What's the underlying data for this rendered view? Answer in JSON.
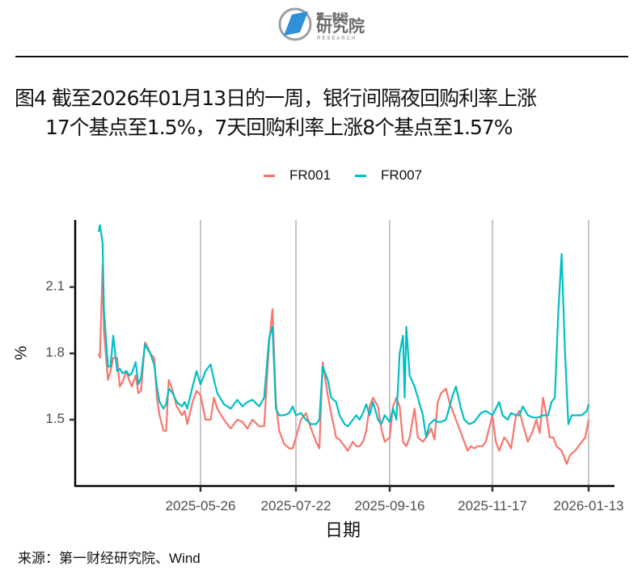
{
  "logo": {
    "small_text": "第一财经",
    "big_text": "研究院",
    "en_text": "RESEARCH",
    "icon": "diamond-circle-logo-icon",
    "colors": {
      "blue": "#2f8fd8",
      "gray": "#9aa0a6"
    }
  },
  "title": {
    "line1": "图4  截至2026年01月13日的一周，银行间隔夜回购利率上涨",
    "line2": "17个基点至1.5%，7天回购利率上涨8个基点至1.57%"
  },
  "legend": [
    {
      "label": "FR001",
      "color": "#f8766d"
    },
    {
      "label": "FR007",
      "color": "#00bfc4"
    }
  ],
  "axes": {
    "ylabel": "%",
    "xlabel": "日期",
    "yticks": [
      "2.1",
      "1.8",
      "1.5"
    ],
    "xticks": [
      "2025-05-26",
      "2025-07-22",
      "2025-09-16",
      "2025-11-17",
      "2026-01-13"
    ]
  },
  "source": "来源：第一财经研究院、Wind",
  "chart_data": {
    "type": "line",
    "title": "截至2026年01月13日的一周，银行间隔夜回购利率上涨17个基点至1.5%，7天回购利率上涨8个基点至1.57%",
    "xlabel": "日期",
    "ylabel": "%",
    "ylim": [
      1.21,
      2.4
    ],
    "x_tick_labels": [
      "2025-05-26",
      "2025-07-22",
      "2025-09-16",
      "2025-11-17",
      "2026-01-13"
    ],
    "y_tick_values": [
      1.5,
      1.8,
      2.1
    ],
    "grid": "vertical major lines at x ticks",
    "legend_position": "top",
    "x_range_approx": [
      "2025-03-10",
      "2026-01-13"
    ],
    "series": [
      {
        "name": "FR001",
        "color": "#f8766d",
        "points": [
          [
            "2025-03-10",
            1.8
          ],
          [
            "2025-03-11",
            1.78
          ],
          [
            "2025-03-13",
            2.2
          ],
          [
            "2025-03-14",
            1.9
          ],
          [
            "2025-03-17",
            1.68
          ],
          [
            "2025-03-19",
            1.72
          ],
          [
            "2025-03-21",
            1.78
          ],
          [
            "2025-03-24",
            1.78
          ],
          [
            "2025-03-26",
            1.65
          ],
          [
            "2025-03-28",
            1.67
          ],
          [
            "2025-03-31",
            1.72
          ],
          [
            "2025-04-02",
            1.68
          ],
          [
            "2025-04-04",
            1.65
          ],
          [
            "2025-04-07",
            1.7
          ],
          [
            "2025-04-09",
            1.62
          ],
          [
            "2025-04-11",
            1.63
          ],
          [
            "2025-04-14",
            1.85
          ],
          [
            "2025-04-16",
            1.83
          ],
          [
            "2025-04-18",
            1.8
          ],
          [
            "2025-04-21",
            1.78
          ],
          [
            "2025-04-23",
            1.6
          ],
          [
            "2025-04-25",
            1.52
          ],
          [
            "2025-04-28",
            1.45
          ],
          [
            "2025-04-30",
            1.45
          ],
          [
            "2025-05-02",
            1.68
          ],
          [
            "2025-05-05",
            1.63
          ],
          [
            "2025-05-08",
            1.56
          ],
          [
            "2025-05-12",
            1.52
          ],
          [
            "2025-05-14",
            1.54
          ],
          [
            "2025-05-16",
            1.48
          ],
          [
            "2025-05-20",
            1.58
          ],
          [
            "2025-05-23",
            1.63
          ],
          [
            "2025-05-26",
            1.61
          ],
          [
            "2025-05-29",
            1.5
          ],
          [
            "2025-06-01",
            1.5
          ],
          [
            "2025-06-03",
            1.6
          ],
          [
            "2025-06-05",
            1.55
          ],
          [
            "2025-06-09",
            1.5
          ],
          [
            "2025-06-13",
            1.46
          ],
          [
            "2025-06-17",
            1.5
          ],
          [
            "2025-06-20",
            1.49
          ],
          [
            "2025-06-23",
            1.46
          ],
          [
            "2025-06-26",
            1.5
          ],
          [
            "2025-06-30",
            1.47
          ],
          [
            "2025-07-03",
            1.47
          ],
          [
            "2025-07-06",
            1.85
          ],
          [
            "2025-07-08",
            2.0
          ],
          [
            "2025-07-10",
            1.58
          ],
          [
            "2025-07-12",
            1.45
          ],
          [
            "2025-07-15",
            1.39
          ],
          [
            "2025-07-18",
            1.37
          ],
          [
            "2025-07-20",
            1.37
          ],
          [
            "2025-07-22",
            1.42
          ],
          [
            "2025-07-25",
            1.5
          ],
          [
            "2025-07-28",
            1.53
          ],
          [
            "2025-07-31",
            1.46
          ],
          [
            "2025-08-03",
            1.4
          ],
          [
            "2025-08-05",
            1.37
          ],
          [
            "2025-08-07",
            1.76
          ],
          [
            "2025-08-10",
            1.61
          ],
          [
            "2025-08-12",
            1.53
          ],
          [
            "2025-08-15",
            1.42
          ],
          [
            "2025-08-17",
            1.41
          ],
          [
            "2025-08-20",
            1.38
          ],
          [
            "2025-08-22",
            1.36
          ],
          [
            "2025-08-25",
            1.4
          ],
          [
            "2025-08-27",
            1.38
          ],
          [
            "2025-08-29",
            1.38
          ],
          [
            "2025-08-31",
            1.4
          ],
          [
            "2025-09-02",
            1.45
          ],
          [
            "2025-09-04",
            1.56
          ],
          [
            "2025-09-06",
            1.6
          ],
          [
            "2025-09-09",
            1.56
          ],
          [
            "2025-09-11",
            1.46
          ],
          [
            "2025-09-13",
            1.4
          ],
          [
            "2025-09-16",
            1.42
          ],
          [
            "2025-09-18",
            1.56
          ],
          [
            "2025-09-20",
            1.6
          ],
          [
            "2025-09-22",
            1.56
          ],
          [
            "2025-09-24",
            1.4
          ],
          [
            "2025-09-26",
            1.38
          ],
          [
            "2025-09-28",
            1.42
          ],
          [
            "2025-10-01",
            1.55
          ],
          [
            "2025-10-03",
            1.42
          ],
          [
            "2025-10-06",
            1.4
          ],
          [
            "2025-10-09",
            1.43
          ],
          [
            "2025-10-11",
            1.46
          ],
          [
            "2025-10-13",
            1.41
          ],
          [
            "2025-10-15",
            1.58
          ],
          [
            "2025-10-17",
            1.62
          ],
          [
            "2025-10-20",
            1.64
          ],
          [
            "2025-10-22",
            1.58
          ],
          [
            "2025-10-26",
            1.5
          ],
          [
            "2025-10-29",
            1.44
          ],
          [
            "2025-10-31",
            1.4
          ],
          [
            "2025-11-02",
            1.36
          ],
          [
            "2025-11-04",
            1.38
          ],
          [
            "2025-11-06",
            1.37
          ],
          [
            "2025-11-08",
            1.38
          ],
          [
            "2025-11-11",
            1.38
          ],
          [
            "2025-11-13",
            1.4
          ],
          [
            "2025-11-17",
            1.52
          ],
          [
            "2025-11-19",
            1.4
          ],
          [
            "2025-11-21",
            1.36
          ],
          [
            "2025-11-24",
            1.42
          ],
          [
            "2025-11-26",
            1.4
          ],
          [
            "2025-11-28",
            1.37
          ],
          [
            "2025-12-01",
            1.52
          ],
          [
            "2025-12-03",
            1.54
          ],
          [
            "2025-12-05",
            1.48
          ],
          [
            "2025-12-08",
            1.4
          ],
          [
            "2025-12-11",
            1.45
          ],
          [
            "2025-12-13",
            1.5
          ],
          [
            "2025-12-15",
            1.44
          ],
          [
            "2025-12-17",
            1.6
          ],
          [
            "2025-12-19",
            1.52
          ],
          [
            "2025-12-21",
            1.42
          ],
          [
            "2025-12-23",
            1.42
          ],
          [
            "2025-12-25",
            1.38
          ],
          [
            "2025-12-28",
            1.36
          ],
          [
            "2025-12-31",
            1.3
          ],
          [
            "2026-01-02",
            1.34
          ],
          [
            "2026-01-05",
            1.36
          ],
          [
            "2026-01-07",
            1.38
          ],
          [
            "2026-01-09",
            1.4
          ],
          [
            "2026-01-11",
            1.42
          ],
          [
            "2026-01-13",
            1.5
          ]
        ]
      },
      {
        "name": "FR007",
        "color": "#00bfc4",
        "points": [
          [
            "2025-03-10",
            2.35
          ],
          [
            "2025-03-11",
            2.38
          ],
          [
            "2025-03-13",
            2.3
          ],
          [
            "2025-03-14",
            2.0
          ],
          [
            "2025-03-17",
            1.74
          ],
          [
            "2025-03-19",
            1.74
          ],
          [
            "2025-03-21",
            1.88
          ],
          [
            "2025-03-24",
            1.72
          ],
          [
            "2025-03-26",
            1.73
          ],
          [
            "2025-03-28",
            1.71
          ],
          [
            "2025-03-31",
            1.72
          ],
          [
            "2025-04-02",
            1.7
          ],
          [
            "2025-04-04",
            1.71
          ],
          [
            "2025-04-07",
            1.76
          ],
          [
            "2025-04-09",
            1.66
          ],
          [
            "2025-04-11",
            1.69
          ],
          [
            "2025-04-14",
            1.84
          ],
          [
            "2025-04-16",
            1.82
          ],
          [
            "2025-04-18",
            1.8
          ],
          [
            "2025-04-21",
            1.75
          ],
          [
            "2025-04-23",
            1.65
          ],
          [
            "2025-04-25",
            1.58
          ],
          [
            "2025-04-28",
            1.55
          ],
          [
            "2025-04-30",
            1.57
          ],
          [
            "2025-05-02",
            1.64
          ],
          [
            "2025-05-05",
            1.62
          ],
          [
            "2025-05-08",
            1.58
          ],
          [
            "2025-05-12",
            1.56
          ],
          [
            "2025-05-14",
            1.58
          ],
          [
            "2025-05-16",
            1.55
          ],
          [
            "2025-05-20",
            1.65
          ],
          [
            "2025-05-23",
            1.72
          ],
          [
            "2025-05-26",
            1.66
          ],
          [
            "2025-05-29",
            1.72
          ],
          [
            "2025-06-01",
            1.75
          ],
          [
            "2025-06-03",
            1.68
          ],
          [
            "2025-06-05",
            1.62
          ],
          [
            "2025-06-09",
            1.57
          ],
          [
            "2025-06-13",
            1.55
          ],
          [
            "2025-06-17",
            1.59
          ],
          [
            "2025-06-20",
            1.56
          ],
          [
            "2025-06-23",
            1.58
          ],
          [
            "2025-06-26",
            1.59
          ],
          [
            "2025-06-30",
            1.56
          ],
          [
            "2025-07-03",
            1.6
          ],
          [
            "2025-07-06",
            1.87
          ],
          [
            "2025-07-08",
            1.92
          ],
          [
            "2025-07-10",
            1.55
          ],
          [
            "2025-07-12",
            1.52
          ],
          [
            "2025-07-15",
            1.52
          ],
          [
            "2025-07-18",
            1.53
          ],
          [
            "2025-07-20",
            1.56
          ],
          [
            "2025-07-22",
            1.52
          ],
          [
            "2025-07-25",
            1.53
          ],
          [
            "2025-07-28",
            1.5
          ],
          [
            "2025-07-31",
            1.48
          ],
          [
            "2025-08-03",
            1.48
          ],
          [
            "2025-08-05",
            1.5
          ],
          [
            "2025-08-07",
            1.74
          ],
          [
            "2025-08-10",
            1.68
          ],
          [
            "2025-08-12",
            1.6
          ],
          [
            "2025-08-15",
            1.58
          ],
          [
            "2025-08-17",
            1.52
          ],
          [
            "2025-08-20",
            1.48
          ],
          [
            "2025-08-22",
            1.47
          ],
          [
            "2025-08-25",
            1.5
          ],
          [
            "2025-08-27",
            1.52
          ],
          [
            "2025-08-29",
            1.5
          ],
          [
            "2025-08-31",
            1.53
          ],
          [
            "2025-09-02",
            1.57
          ],
          [
            "2025-09-04",
            1.52
          ],
          [
            "2025-09-06",
            1.58
          ],
          [
            "2025-09-09",
            1.5
          ],
          [
            "2025-09-11",
            1.48
          ],
          [
            "2025-09-13",
            1.52
          ],
          [
            "2025-09-16",
            1.49
          ],
          [
            "2025-09-18",
            1.55
          ],
          [
            "2025-09-20",
            1.5
          ],
          [
            "2025-09-22",
            1.8
          ],
          [
            "2025-09-24",
            1.88
          ],
          [
            "2025-09-25",
            1.6
          ],
          [
            "2025-09-26",
            1.92
          ],
          [
            "2025-09-28",
            1.7
          ],
          [
            "2025-10-01",
            1.65
          ],
          [
            "2025-10-03",
            1.6
          ],
          [
            "2025-10-06",
            1.52
          ],
          [
            "2025-10-08",
            1.42
          ],
          [
            "2025-10-10",
            1.48
          ],
          [
            "2025-10-13",
            1.5
          ],
          [
            "2025-10-15",
            1.49
          ],
          [
            "2025-10-17",
            1.49
          ],
          [
            "2025-10-20",
            1.5
          ],
          [
            "2025-10-24",
            1.61
          ],
          [
            "2025-10-26",
            1.65
          ],
          [
            "2025-10-29",
            1.55
          ],
          [
            "2025-10-31",
            1.5
          ],
          [
            "2025-11-03",
            1.48
          ],
          [
            "2025-11-06",
            1.49
          ],
          [
            "2025-11-10",
            1.53
          ],
          [
            "2025-11-13",
            1.54
          ],
          [
            "2025-11-17",
            1.52
          ],
          [
            "2025-11-19",
            1.55
          ],
          [
            "2025-11-21",
            1.58
          ],
          [
            "2025-11-23",
            1.52
          ],
          [
            "2025-11-26",
            1.5
          ],
          [
            "2025-11-28",
            1.53
          ],
          [
            "2025-12-01",
            1.52
          ],
          [
            "2025-12-03",
            1.52
          ],
          [
            "2025-12-05",
            1.56
          ],
          [
            "2025-12-08",
            1.52
          ],
          [
            "2025-12-11",
            1.51
          ],
          [
            "2025-12-14",
            1.51
          ],
          [
            "2025-12-17",
            1.52
          ],
          [
            "2025-12-20",
            1.52
          ],
          [
            "2025-12-22",
            1.58
          ],
          [
            "2025-12-24",
            1.6
          ],
          [
            "2025-12-26",
            1.98
          ],
          [
            "2025-12-28",
            2.25
          ],
          [
            "2025-12-30",
            1.8
          ],
          [
            "2026-01-01",
            1.48
          ],
          [
            "2026-01-03",
            1.52
          ],
          [
            "2026-01-06",
            1.52
          ],
          [
            "2026-01-09",
            1.52
          ],
          [
            "2026-01-12",
            1.54
          ],
          [
            "2026-01-13",
            1.57
          ]
        ]
      }
    ]
  }
}
